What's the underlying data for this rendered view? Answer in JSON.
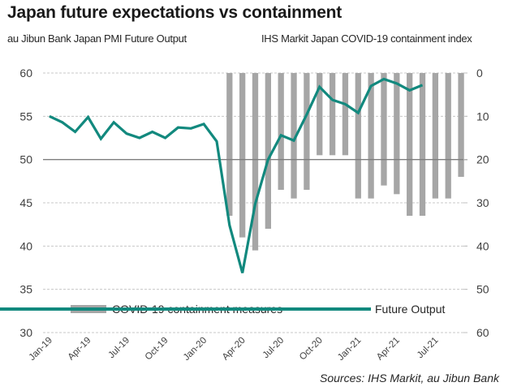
{
  "header": {
    "title": "Japan future expectations vs containment",
    "left_axis_title": "au Jibun Bank Japan PMI Future Output",
    "right_axis_title": "IHS Markit Japan COVID-19 containment index"
  },
  "footer": {
    "source": "Sources: IHS Markit, au Jibun Bank"
  },
  "colors": {
    "line": "#12897e",
    "bars": "#a6a6a6",
    "gridline": "#c8c8c8",
    "baseline": "#7f7f7f"
  },
  "chart_data": {
    "type": "bar+line",
    "title": "Japan future expectations vs containment",
    "categories": [
      "Jan-19",
      "Feb-19",
      "Mar-19",
      "Apr-19",
      "May-19",
      "Jun-19",
      "Jul-19",
      "Aug-19",
      "Sep-19",
      "Oct-19",
      "Nov-19",
      "Dec-19",
      "Jan-20",
      "Feb-20",
      "Mar-20",
      "Apr-20",
      "May-20",
      "Jun-20",
      "Jul-20",
      "Aug-20",
      "Sep-20",
      "Oct-20",
      "Nov-20",
      "Dec-20",
      "Jan-21",
      "Feb-21",
      "Mar-21",
      "Apr-21",
      "May-21",
      "Jun-21",
      "Jul-21",
      "Aug-21",
      "Sep-21"
    ],
    "x_tick_labels": [
      "Jan-19",
      "Apr-19",
      "Jul-19",
      "Oct-19",
      "Jan-20",
      "Apr-20",
      "Jul-20",
      "Oct-20",
      "Jan-21",
      "Apr-21",
      "Jul-21"
    ],
    "series": [
      {
        "name": "COVID-19 containment measures",
        "type": "bar",
        "axis": "right",
        "values": [
          null,
          null,
          null,
          null,
          null,
          null,
          null,
          null,
          null,
          null,
          null,
          null,
          null,
          null,
          33,
          38,
          41,
          36,
          27,
          29,
          27,
          19,
          19,
          19,
          29,
          29,
          26,
          28,
          33,
          33,
          29,
          29,
          24
        ]
      },
      {
        "name": "Future Output",
        "type": "line",
        "axis": "left",
        "values": [
          55.0,
          54.3,
          53.2,
          54.9,
          52.4,
          54.3,
          53.0,
          52.5,
          53.2,
          52.5,
          53.7,
          53.6,
          54.1,
          52.1,
          42.4,
          36.9,
          44.9,
          50.0,
          52.8,
          52.2,
          55.2,
          58.4,
          56.9,
          56.4,
          55.4,
          58.5,
          59.3,
          58.8,
          58.0,
          58.6,
          null,
          null,
          null
        ]
      }
    ],
    "left_axis": {
      "label": "au Jibun Bank Japan PMI Future Output",
      "ylim": [
        30,
        60
      ],
      "ticks": [
        "60",
        "55",
        "50",
        "45",
        "40",
        "35",
        "30"
      ]
    },
    "right_axis": {
      "label": "IHS Markit Japan COVID-19 containment index",
      "ylim": [
        0,
        60
      ],
      "inverted": true,
      "ticks": [
        "0",
        "10",
        "20",
        "30",
        "40",
        "50",
        "60"
      ]
    },
    "reference_line": 50,
    "grid": true,
    "legend": {
      "placement": "bottom-inside",
      "entries": [
        "COVID-19 containment measures",
        "Future Output"
      ]
    },
    "source": "Sources: IHS Markit, au Jibun Bank"
  }
}
